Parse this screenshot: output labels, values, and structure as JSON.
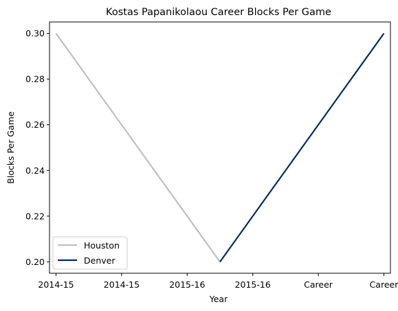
{
  "chart_data": {
    "type": "line",
    "title": "Kostas Papanikolaou Career Blocks Per Game",
    "xlabel": "Year",
    "ylabel": "Blocks Per Game",
    "x_tick_labels": [
      "2014-15",
      "2014-15",
      "2015-16",
      "2015-16",
      "Career",
      "Career"
    ],
    "xlim": [
      -0.1,
      5.1
    ],
    "ylim": [
      0.195,
      0.305
    ],
    "y_ticks": [
      0.2,
      0.22,
      0.24,
      0.26,
      0.28,
      0.3
    ],
    "y_tick_labels": [
      "0.20",
      "0.22",
      "0.24",
      "0.26",
      "0.28",
      "0.30"
    ],
    "grid": false,
    "legend_position": "bottom-left",
    "series": [
      {
        "name": "Houston",
        "color": "#bfbfbf",
        "points": [
          [
            0,
            0.3
          ],
          [
            2.5,
            0.2
          ]
        ]
      },
      {
        "name": "Denver",
        "color": "#002b5c",
        "points": [
          [
            2.5,
            0.2
          ],
          [
            5,
            0.3
          ]
        ]
      }
    ]
  }
}
